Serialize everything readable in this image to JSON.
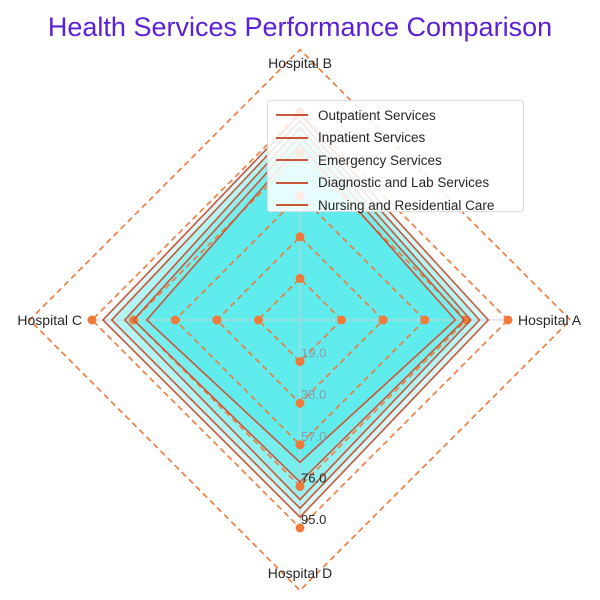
{
  "chart_data": {
    "type": "radar",
    "title": "Health Services Performance Comparison",
    "axes": [
      "Hospital A",
      "Hospital B",
      "Hospital C",
      "Hospital D"
    ],
    "radial_ticks": [
      "19.0",
      "38.0",
      "57.0",
      "76.0",
      "95.0"
    ],
    "rmax": 95,
    "series": [
      {
        "name": "Outpatient Services",
        "values": [
          71,
          80,
          70,
          65
        ]
      },
      {
        "name": "Inpatient Services",
        "values": [
          75,
          84,
          76,
          74
        ]
      },
      {
        "name": "Emergency Services",
        "values": [
          78,
          88,
          80,
          82
        ]
      },
      {
        "name": "Diagnostic and Lab Services",
        "values": [
          82,
          91,
          86,
          86
        ]
      },
      {
        "name": "Nursing and Residential Care",
        "values": [
          86,
          94,
          90,
          90
        ]
      }
    ],
    "colors": {
      "series_line": "#c8573a",
      "fill": "#00e5e5",
      "fill_outer": "#b8f4f4",
      "grid": "#f07a3a",
      "title": "#5b1fd6"
    },
    "legend_position": "upper-right",
    "grid": true
  }
}
